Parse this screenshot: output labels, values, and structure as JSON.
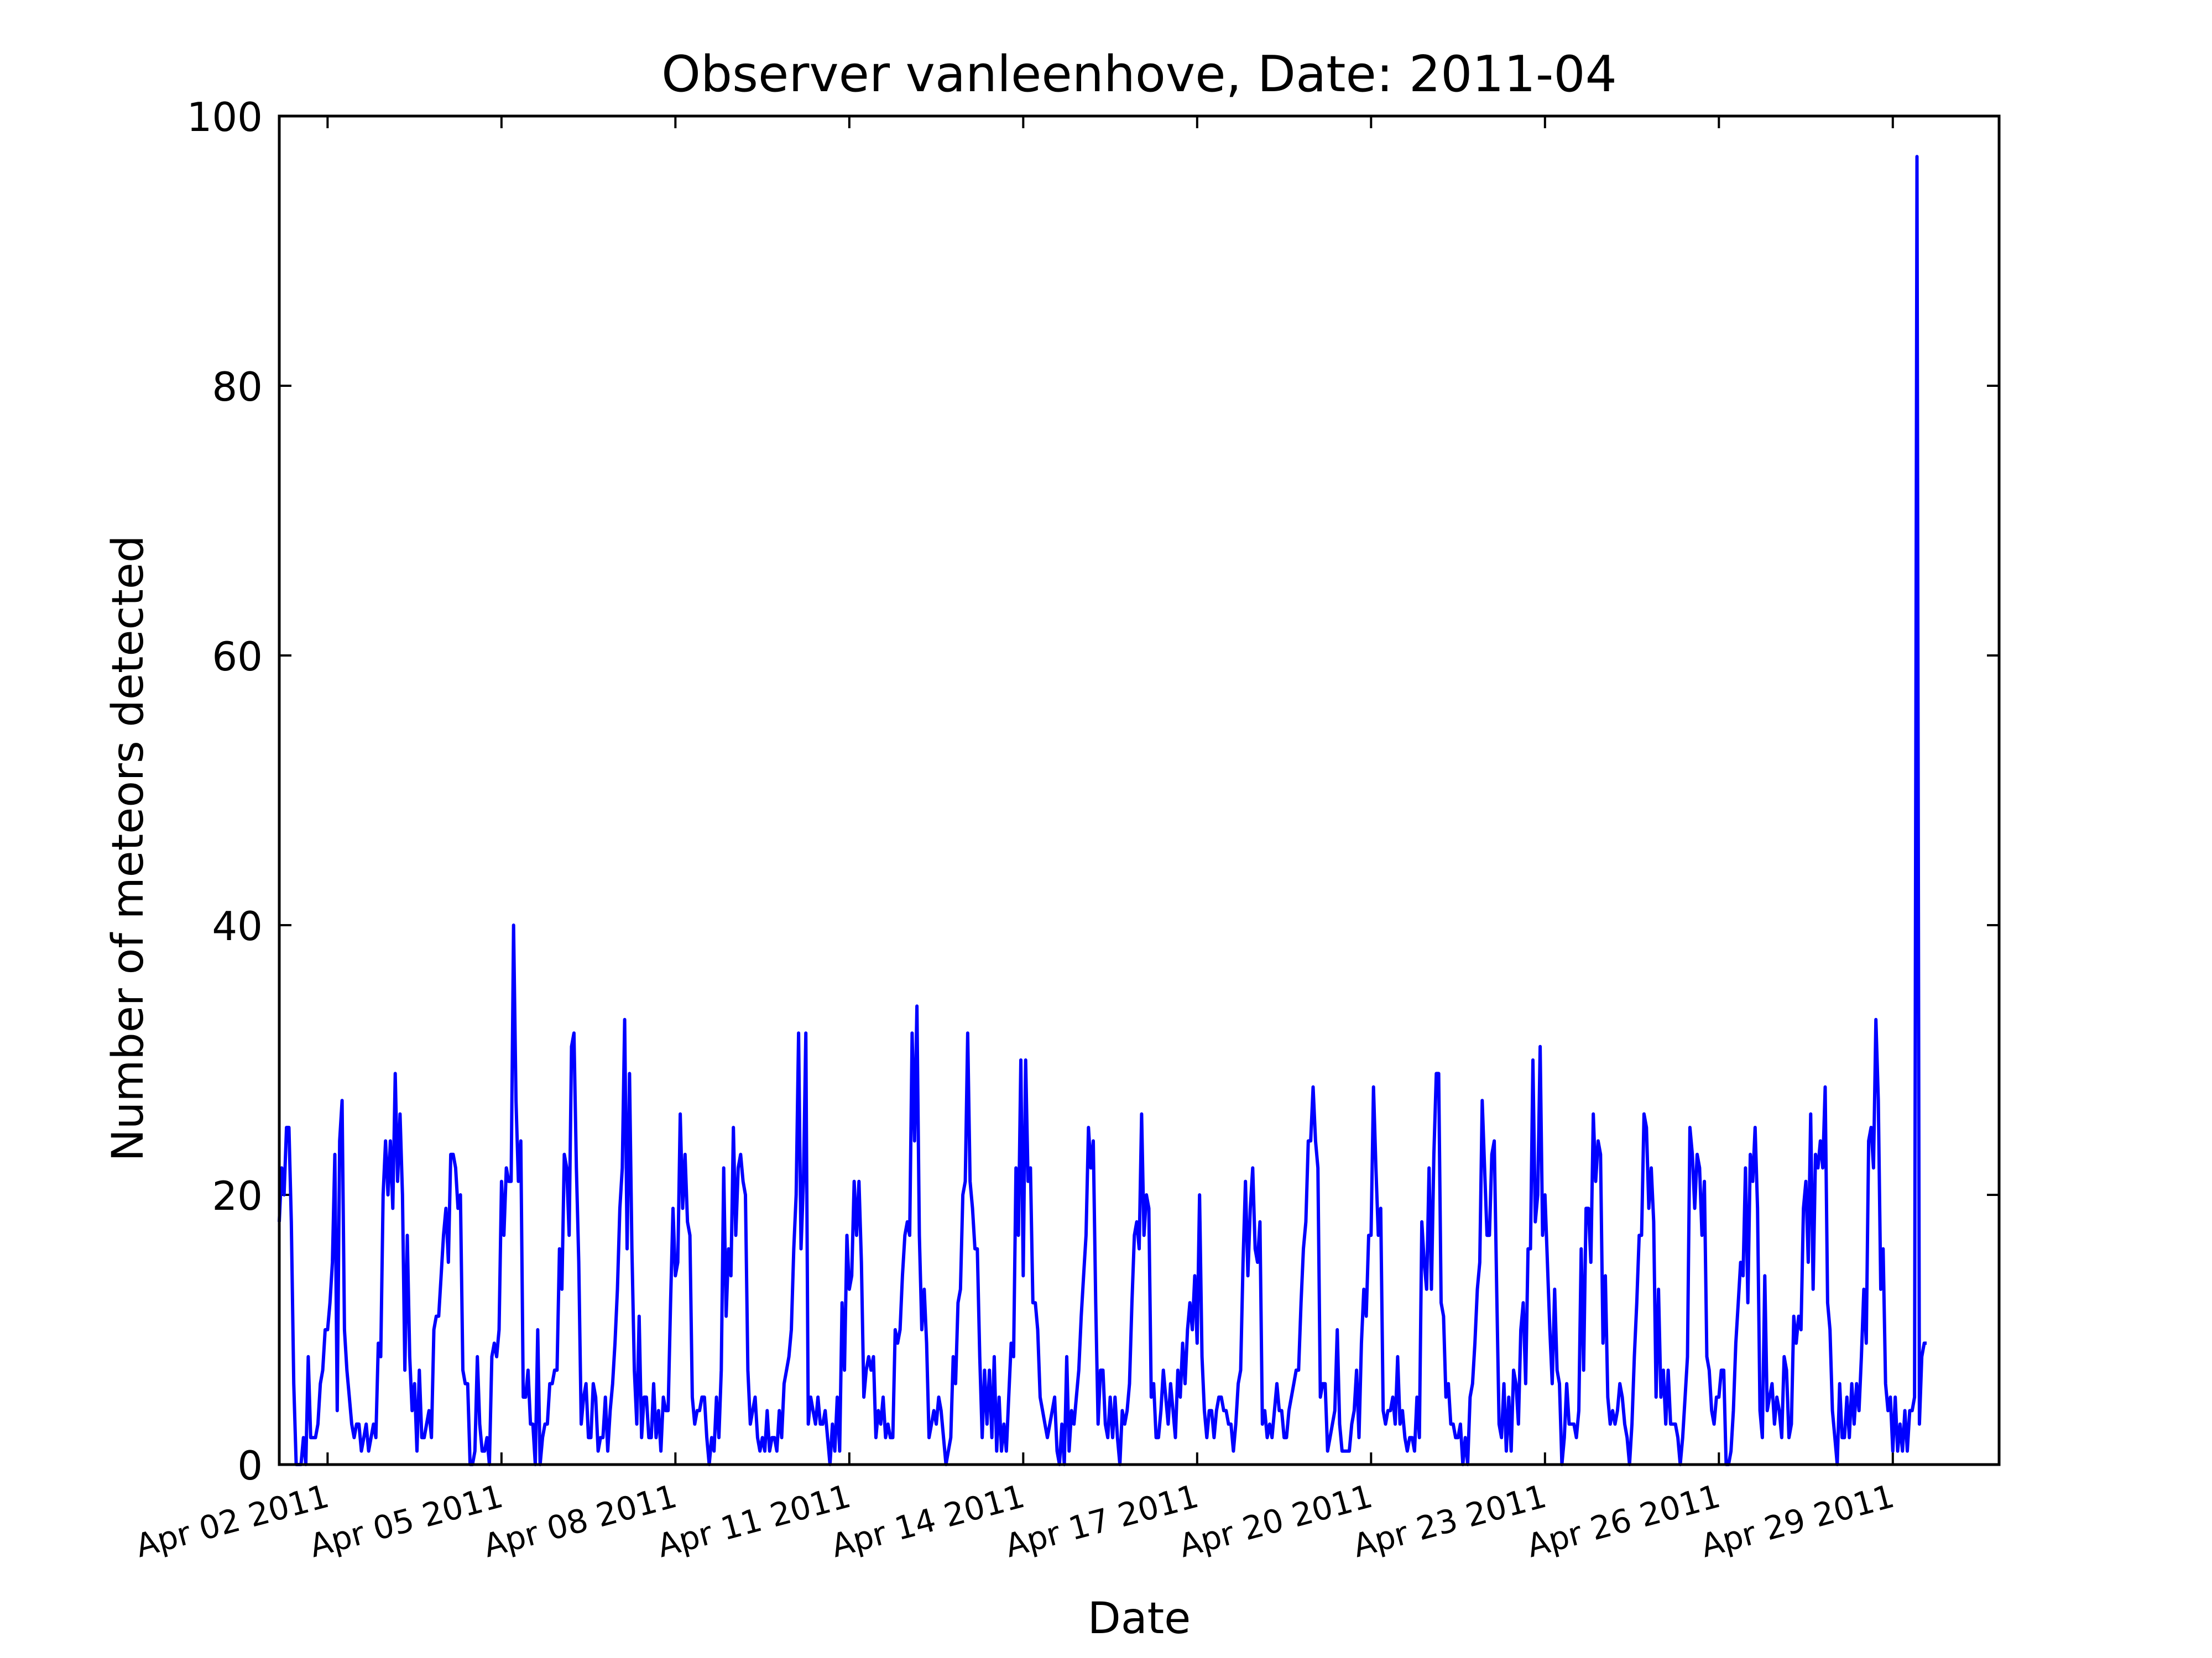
{
  "chart_data": {
    "type": "line",
    "title": "Observer vanleenhove, Date: 2011-04",
    "xlabel": "Date",
    "ylabel": "Number of meteors detected",
    "ylim": [
      0,
      100
    ],
    "xlim": [
      "2011-04-01T04:00",
      "2011-04-30T20:00"
    ],
    "yticks": [
      0,
      20,
      40,
      60,
      80,
      100
    ],
    "xticks": [
      {
        "date": "2011-04-02",
        "label": "Apr 02 2011"
      },
      {
        "date": "2011-04-05",
        "label": "Apr 05 2011"
      },
      {
        "date": "2011-04-08",
        "label": "Apr 08 2011"
      },
      {
        "date": "2011-04-11",
        "label": "Apr 11 2011"
      },
      {
        "date": "2011-04-14",
        "label": "Apr 14 2011"
      },
      {
        "date": "2011-04-17",
        "label": "Apr 17 2011"
      },
      {
        "date": "2011-04-20",
        "label": "Apr 20 2011"
      },
      {
        "date": "2011-04-23",
        "label": "Apr 23 2011"
      },
      {
        "date": "2011-04-26",
        "label": "Apr 26 2011"
      },
      {
        "date": "2011-04-29",
        "label": "Apr 29 2011"
      }
    ],
    "grid": false,
    "line_color": "#0000ff",
    "series": [
      {
        "start": "2011-04-01T04:00",
        "step_hours": 1,
        "values": [
          18,
          22,
          20,
          25,
          25,
          18,
          6,
          0,
          0,
          0,
          2,
          0,
          8,
          2,
          2,
          2,
          3,
          6,
          7,
          10,
          10,
          12,
          15,
          23,
          4,
          24,
          27,
          10,
          7,
          5,
          3,
          2,
          3,
          3,
          1,
          2,
          3,
          1,
          2,
          3,
          2,
          9,
          8,
          20,
          24,
          20,
          24,
          19,
          29,
          21,
          26,
          20,
          7,
          17,
          8,
          4,
          6,
          1,
          7,
          2,
          2,
          3,
          4,
          2,
          10,
          11,
          11,
          14,
          17,
          19,
          15,
          23,
          23,
          22,
          19,
          20,
          7,
          6,
          6,
          0,
          0,
          1,
          8,
          3,
          1,
          1,
          2,
          0,
          8,
          9,
          8,
          10,
          21,
          17,
          22,
          21,
          21,
          40,
          27,
          21,
          24,
          5,
          5,
          7,
          3,
          3,
          0,
          10,
          0,
          2,
          3,
          3,
          6,
          6,
          7,
          7,
          16,
          13,
          23,
          22,
          17,
          31,
          32,
          22,
          15,
          3,
          5,
          6,
          2,
          2,
          6,
          5,
          1,
          2,
          2,
          5,
          1,
          4,
          6,
          9,
          13,
          19,
          22,
          33,
          16,
          29,
          16,
          7,
          3,
          11,
          2,
          5,
          5,
          2,
          2,
          6,
          2,
          4,
          1,
          5,
          4,
          4,
          12,
          19,
          14,
          15,
          26,
          19,
          23,
          18,
          17,
          5,
          3,
          4,
          4,
          5,
          5,
          2,
          0,
          2,
          1,
          5,
          2,
          7,
          22,
          11,
          16,
          14,
          25,
          17,
          22,
          23,
          21,
          20,
          7,
          3,
          4,
          5,
          2,
          1,
          2,
          1,
          4,
          1,
          2,
          2,
          1,
          4,
          2,
          6,
          7,
          8,
          10,
          16,
          20,
          32,
          16,
          21,
          32,
          3,
          5,
          4,
          3,
          5,
          3,
          3,
          4,
          2,
          0,
          3,
          1,
          5,
          1,
          12,
          7,
          17,
          13,
          14,
          21,
          17,
          21,
          15,
          5,
          7,
          8,
          7,
          8,
          2,
          4,
          3,
          5,
          2,
          3,
          2,
          2,
          10,
          9,
          10,
          14,
          17,
          18,
          17,
          32,
          24,
          34,
          17,
          10,
          13,
          9,
          2,
          3,
          4,
          3,
          5,
          4,
          2,
          0,
          1,
          2,
          8,
          6,
          12,
          13,
          20,
          21,
          32,
          21,
          19,
          16,
          16,
          8,
          2,
          7,
          3,
          7,
          2,
          8,
          1,
          5,
          1,
          3,
          1,
          5,
          9,
          8,
          22,
          17,
          30,
          14,
          30,
          21,
          22,
          12,
          12,
          10,
          5,
          4,
          3,
          2,
          3,
          4,
          5,
          1,
          0,
          3,
          0,
          8,
          1,
          4,
          3,
          5,
          7,
          11,
          14,
          17,
          25,
          22,
          24,
          12,
          3,
          7,
          7,
          3,
          2,
          5,
          2,
          5,
          2,
          0,
          4,
          3,
          4,
          6,
          12,
          17,
          18,
          16,
          26,
          17,
          20,
          19,
          5,
          6,
          2,
          2,
          4,
          7,
          5,
          3,
          6,
          4,
          2,
          7,
          5,
          9,
          6,
          10,
          12,
          10,
          14,
          9,
          20,
          8,
          4,
          2,
          4,
          4,
          2,
          4,
          5,
          5,
          4,
          4,
          3,
          3,
          1,
          3,
          6,
          7,
          15,
          21,
          14,
          19,
          22,
          16,
          15,
          18,
          3,
          4,
          2,
          3,
          2,
          4,
          6,
          4,
          4,
          2,
          2,
          4,
          5,
          6,
          7,
          7,
          12,
          16,
          18,
          24,
          24,
          28,
          24,
          22,
          5,
          6,
          6,
          1,
          2,
          3,
          4,
          10,
          3,
          1,
          1,
          1,
          1,
          3,
          4,
          7,
          2,
          9,
          13,
          11,
          17,
          17,
          28,
          22,
          17,
          19,
          4,
          3,
          4,
          4,
          5,
          3,
          8,
          3,
          4,
          2,
          1,
          2,
          2,
          1,
          5,
          2,
          18,
          15,
          13,
          22,
          13,
          23,
          29,
          29,
          12,
          11,
          5,
          6,
          3,
          3,
          2,
          2,
          3,
          0,
          2,
          0,
          5,
          6,
          9,
          13,
          15,
          27,
          22,
          17,
          17,
          23,
          24,
          13,
          3,
          2,
          6,
          1,
          5,
          1,
          7,
          6,
          3,
          10,
          12,
          6,
          16,
          16,
          30,
          18,
          20,
          31,
          17,
          20,
          15,
          10,
          6,
          13,
          7,
          6,
          0,
          2,
          6,
          3,
          3,
          3,
          2,
          4,
          16,
          7,
          19,
          19,
          15,
          26,
          21,
          24,
          23,
          9,
          14,
          5,
          3,
          4,
          3,
          4,
          6,
          5,
          3,
          2,
          0,
          3,
          8,
          12,
          17,
          17,
          26,
          25,
          19,
          22,
          18,
          5,
          13,
          5,
          7,
          3,
          7,
          3,
          3,
          3,
          2,
          0,
          2,
          5,
          8,
          25,
          23,
          19,
          23,
          22,
          17,
          21,
          8,
          7,
          4,
          3,
          5,
          5,
          7,
          7,
          0,
          0,
          1,
          4,
          9,
          12,
          15,
          14,
          22,
          12,
          23,
          21,
          25,
          19,
          4,
          2,
          14,
          4,
          5,
          6,
          3,
          5,
          4,
          2,
          8,
          7,
          2,
          3,
          11,
          9,
          11,
          10,
          19,
          21,
          15,
          26,
          13,
          23,
          22,
          24,
          22,
          28,
          12,
          10,
          4,
          2,
          0,
          6,
          2,
          2,
          5,
          2,
          6,
          3,
          6,
          4,
          8,
          13,
          9,
          24,
          25,
          22,
          33,
          27,
          13,
          16,
          6,
          4,
          5,
          1,
          5,
          1,
          3,
          1,
          4,
          1,
          4,
          4,
          5,
          97,
          3,
          8,
          9,
          9
        ]
      }
    ]
  }
}
